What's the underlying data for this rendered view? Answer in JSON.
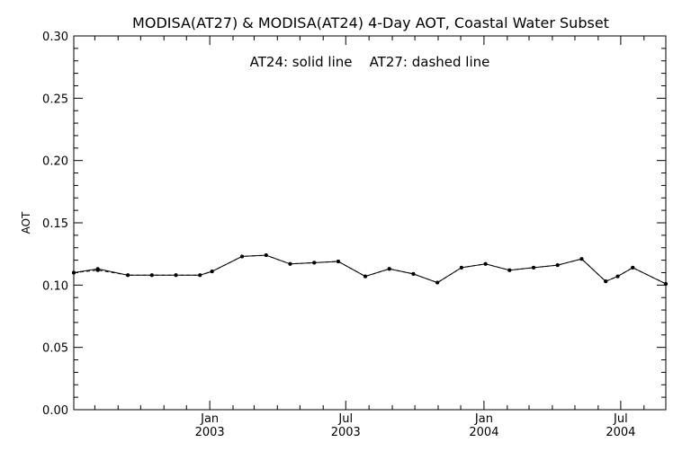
{
  "chart_data": {
    "type": "line",
    "title": "MODISA(AT27) & MODISA(AT24) 4-Day AOT, Coastal Water Subset",
    "annotation": "AT24: solid line    AT27: dashed line",
    "ylabel": "AOT",
    "xlabel": "",
    "ylim": [
      0.0,
      0.3
    ],
    "xlim": [
      "2002-07-04",
      "2004-08-30"
    ],
    "y_ticks": [
      "0.00",
      "0.05",
      "0.10",
      "0.15",
      "0.20",
      "0.25",
      "0.30"
    ],
    "x_ticks": [
      {
        "date": "2003-01-01",
        "month": "Jan",
        "year": "2003"
      },
      {
        "date": "2003-07-01",
        "month": "Jul",
        "year": "2003"
      },
      {
        "date": "2004-01-01",
        "month": "Jan",
        "year": "2004"
      },
      {
        "date": "2004-07-01",
        "month": "Jul",
        "year": "2004"
      }
    ],
    "grid": false,
    "series": [
      {
        "name": "AT24",
        "style": "solid",
        "color": "#000000",
        "x": [
          "2002-07-04",
          "2002-08-05",
          "2002-09-14",
          "2002-10-16",
          "2002-11-17",
          "2002-12-19",
          "2003-01-04",
          "2003-02-13",
          "2003-03-17",
          "2003-04-18",
          "2003-05-20",
          "2003-06-21",
          "2003-07-27",
          "2003-08-28",
          "2003-09-29",
          "2003-10-31",
          "2003-12-02",
          "2004-01-03",
          "2004-02-04",
          "2004-03-07",
          "2004-04-08",
          "2004-05-10",
          "2004-06-11",
          "2004-06-27",
          "2004-07-17",
          "2004-08-30"
        ],
        "values": [
          0.11,
          0.113,
          0.108,
          0.108,
          0.108,
          0.108,
          0.111,
          0.123,
          0.124,
          0.117,
          0.118,
          0.119,
          0.107,
          0.113,
          0.109,
          0.102,
          0.114,
          0.117,
          0.112,
          0.114,
          0.116,
          0.121,
          0.103,
          0.107,
          0.114,
          0.101
        ]
      },
      {
        "name": "AT27",
        "style": "dashed",
        "color": "#000000",
        "x": [
          "2002-07-04",
          "2002-08-05",
          "2002-09-14",
          "2002-10-16",
          "2002-11-17",
          "2002-12-19",
          "2003-01-04",
          "2003-02-13",
          "2003-03-17",
          "2003-04-18",
          "2003-05-20",
          "2003-06-21",
          "2003-07-27",
          "2003-08-28",
          "2003-09-29",
          "2003-10-31",
          "2003-12-02",
          "2004-01-03",
          "2004-02-04",
          "2004-03-07",
          "2004-04-08",
          "2004-05-10",
          "2004-06-11",
          "2004-06-27",
          "2004-07-17",
          "2004-08-30"
        ],
        "values": [
          0.11,
          0.112,
          0.108,
          0.108,
          0.108,
          0.108,
          0.111,
          0.123,
          0.124,
          0.117,
          0.118,
          0.119,
          0.107,
          0.113,
          0.109,
          0.102,
          0.114,
          0.117,
          0.112,
          0.114,
          0.116,
          0.121,
          0.103,
          0.107,
          0.114,
          0.101
        ]
      }
    ]
  }
}
